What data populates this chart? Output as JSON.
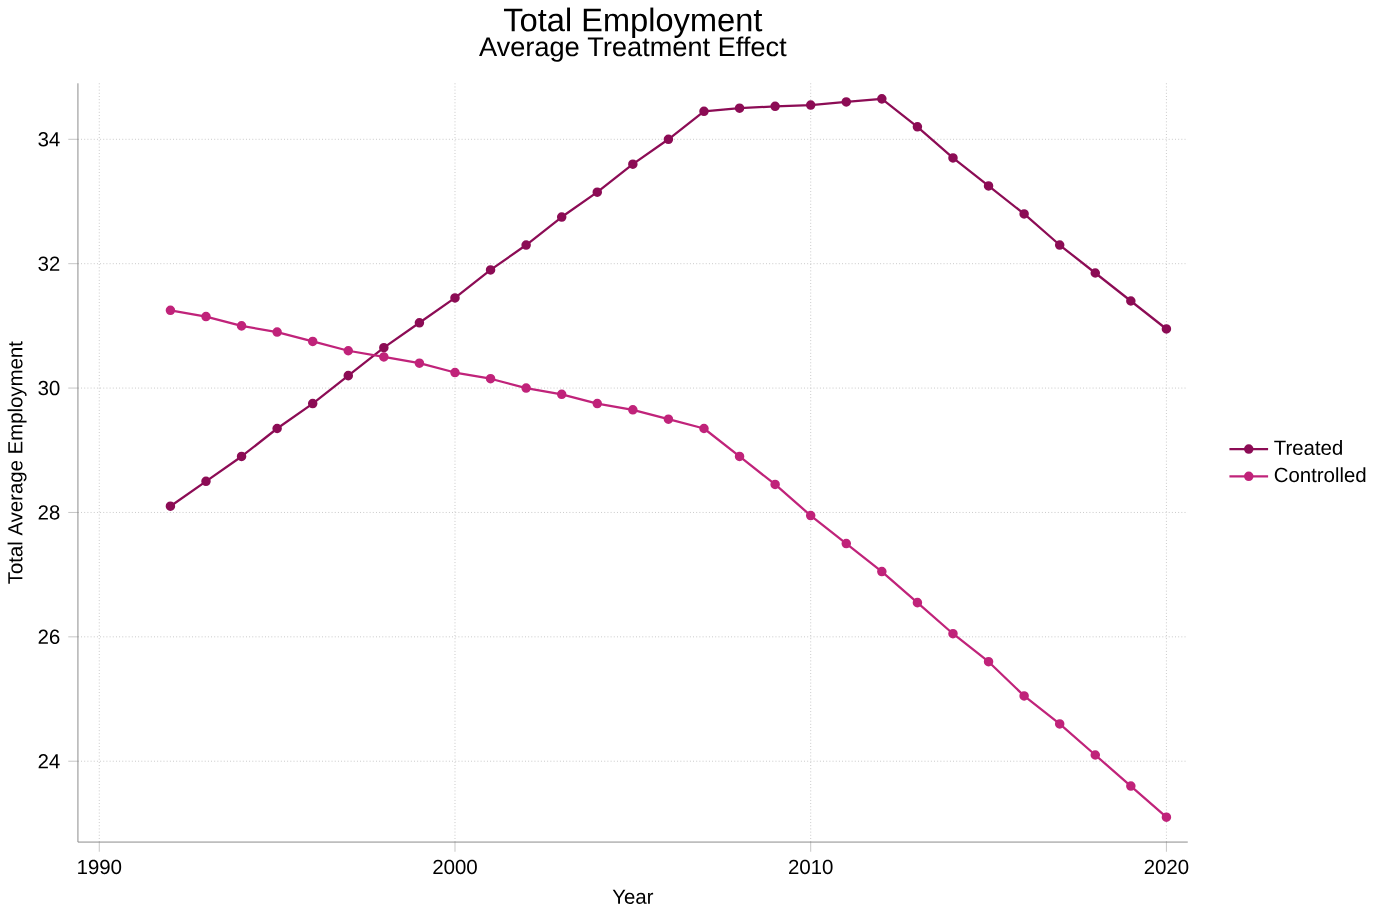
{
  "chart_data": {
    "type": "line",
    "title": "Total Employment",
    "subtitle": "Average Treatment Effect",
    "xlabel": "Year",
    "ylabel": "Total Average Employment",
    "x": [
      1992,
      1993,
      1994,
      1995,
      1996,
      1997,
      1998,
      1999,
      2000,
      2001,
      2002,
      2003,
      2004,
      2005,
      2006,
      2007,
      2008,
      2009,
      2010,
      2011,
      2012,
      2013,
      2014,
      2015,
      2016,
      2017,
      2018,
      2019,
      2020
    ],
    "series": [
      {
        "name": "Treated",
        "color": "#8c0c55",
        "values": [
          28.1,
          28.5,
          28.9,
          29.35,
          29.75,
          30.2,
          30.65,
          31.05,
          31.45,
          31.9,
          32.3,
          32.75,
          33.15,
          33.6,
          34.0,
          34.45,
          34.5,
          34.53,
          34.55,
          34.6,
          34.65,
          34.2,
          33.7,
          33.25,
          32.8,
          32.3,
          31.85,
          31.4,
          30.95
        ]
      },
      {
        "name": "Controlled",
        "color": "#c0237a",
        "values": [
          31.25,
          31.15,
          31.0,
          30.9,
          30.75,
          30.6,
          30.5,
          30.4,
          30.25,
          30.15,
          30.0,
          29.9,
          29.75,
          29.65,
          29.5,
          29.35,
          28.9,
          28.45,
          27.95,
          27.5,
          27.05,
          26.55,
          26.05,
          25.6,
          25.05,
          24.6,
          24.1,
          23.6,
          23.1
        ]
      }
    ],
    "xlim": [
      1989.4,
      2020.6
    ],
    "ylim": [
      22.7,
      34.9
    ],
    "xticks": [
      1990,
      2000,
      2010,
      2020
    ],
    "yticks": [
      24,
      26,
      28,
      30,
      32,
      34
    ],
    "grid": true,
    "legend": "right",
    "marker": "circle",
    "line_style": "solid"
  }
}
